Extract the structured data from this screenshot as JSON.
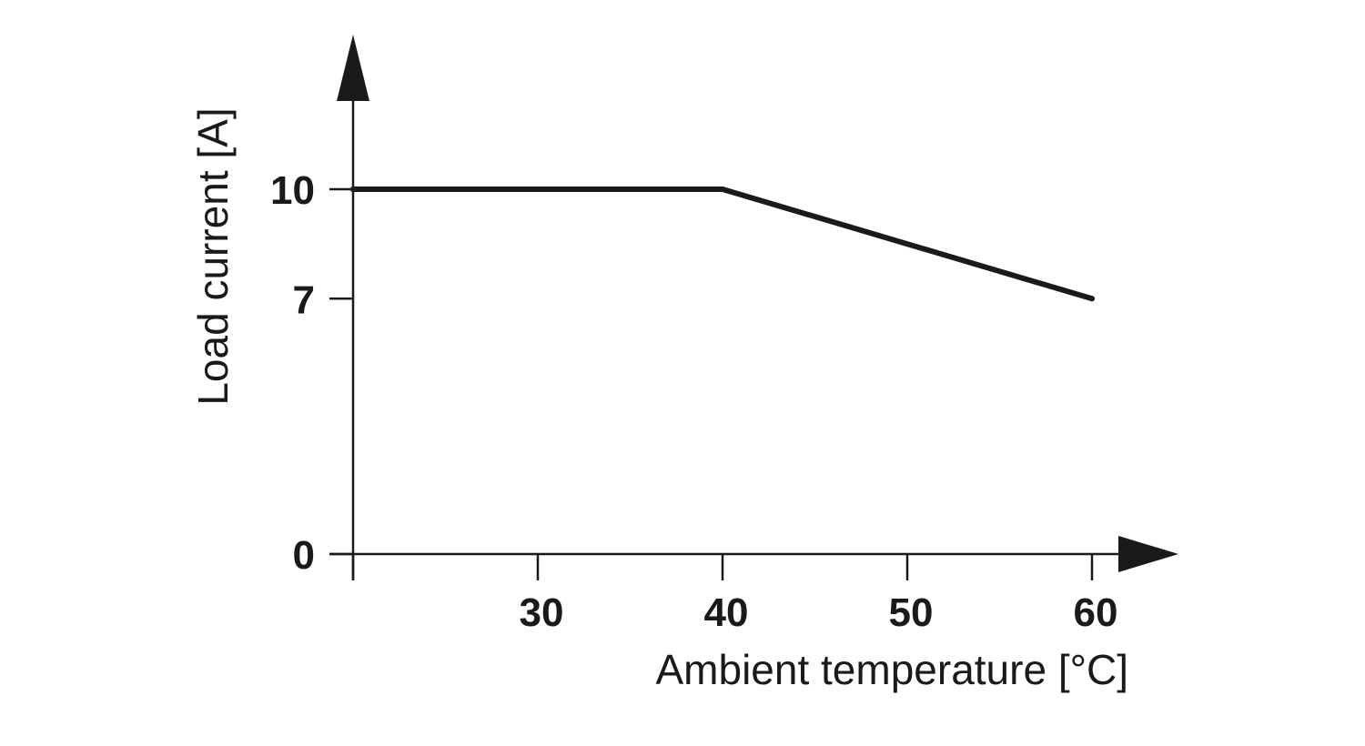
{
  "chart_data": {
    "type": "line",
    "xlabel": "Ambient temperature [°C]",
    "ylabel": "Load current [A]",
    "xlim": [
      20,
      63
    ],
    "ylim": [
      0,
      12
    ],
    "x_ticks": [
      20,
      30,
      40,
      50,
      60
    ],
    "x_tick_labels": [
      "",
      "30",
      "40",
      "50",
      "60"
    ],
    "y_ticks": [
      0,
      7,
      10
    ],
    "y_tick_labels": [
      "0",
      "7",
      "10"
    ],
    "grid": false,
    "legend": "none",
    "series": [
      {
        "x": [
          20,
          40,
          60
        ],
        "y": [
          10,
          10,
          7
        ]
      }
    ],
    "colors": {
      "line": "#1a1a1a",
      "axis": "#1a1a1a"
    }
  }
}
